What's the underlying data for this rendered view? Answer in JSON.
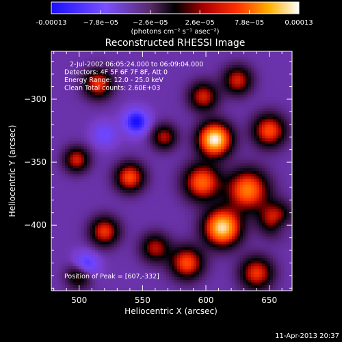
{
  "chart_data": {
    "type": "heatmap",
    "title": "Reconstructed RHESSI Image",
    "xlabel": "Heliocentric X (arcsec)",
    "ylabel": "Heliocentric Y (arcsec)",
    "xlim": [
      478,
      668
    ],
    "ylim": [
      -452,
      -262
    ],
    "x_ticks": [
      500,
      550,
      600,
      650
    ],
    "y_ticks": [
      -300,
      -350,
      -400
    ],
    "colorbar": {
      "min": -0.00013,
      "max": 0.00013,
      "tick_labels": [
        "-0.00013",
        "−7.8e−05",
        "−2.6e−05",
        "2.6e−05",
        "7.8e−05",
        "0.00013"
      ],
      "units": "(photons cm⁻² s⁻¹ asec⁻²)"
    },
    "info_lines": [
      "2-Jul-2002 06:05:24.000 to 06:09:04.000",
      "Detectors: 4F 5F 6F 7F 8F, Att 0",
      "Energy Range: 12.0 - 25.0 keV",
      "Clean    Total counts: 2.60E+03"
    ],
    "peak_label": "Position of Peak = [607,-332]",
    "peak": {
      "x": 607,
      "y": -332
    },
    "field": {
      "baseline": -5.2e-05,
      "sources": [
        {
          "x": 607,
          "y": -332,
          "amp": 0.00018,
          "sigma": 9
        },
        {
          "x": 613,
          "y": -402,
          "amp": 0.00017,
          "sigma": 10
        },
        {
          "x": 633,
          "y": -372,
          "amp": 0.00013,
          "sigma": 11
        },
        {
          "x": 597,
          "y": -366,
          "amp": 0.00012,
          "sigma": 10
        },
        {
          "x": 650,
          "y": -325,
          "amp": 0.00011,
          "sigma": 9
        },
        {
          "x": 655,
          "y": -395,
          "amp": 0.0001,
          "sigma": 9
        },
        {
          "x": 585,
          "y": -430,
          "amp": 0.00011,
          "sigma": 9
        },
        {
          "x": 640,
          "y": -438,
          "amp": 0.0001,
          "sigma": 9
        },
        {
          "x": 598,
          "y": -298,
          "amp": 9e-05,
          "sigma": 8
        },
        {
          "x": 625,
          "y": -285,
          "amp": 9e-05,
          "sigma": 8
        },
        {
          "x": 540,
          "y": -362,
          "amp": 0.00011,
          "sigma": 8
        },
        {
          "x": 515,
          "y": -288,
          "amp": 0.0001,
          "sigma": 8
        },
        {
          "x": 520,
          "y": -405,
          "amp": 0.0001,
          "sigma": 8
        },
        {
          "x": 498,
          "y": -348,
          "amp": 9e-05,
          "sigma": 7
        },
        {
          "x": 560,
          "y": -418,
          "amp": 8e-05,
          "sigma": 8
        },
        {
          "x": 567,
          "y": -330,
          "amp": 8e-05,
          "sigma": 7
        },
        {
          "x": 500,
          "y": -440,
          "amp": 8e-05,
          "sigma": 7
        },
        {
          "x": 545,
          "y": -318,
          "amp": -8e-05,
          "sigma": 7
        },
        {
          "x": 505,
          "y": -432,
          "amp": -7e-05,
          "sigma": 7
        },
        {
          "x": 520,
          "y": -328,
          "amp": -4e-05,
          "sigma": 7
        },
        {
          "x": 660,
          "y": -400,
          "amp": -4e-05,
          "sigma": 6
        }
      ]
    }
  },
  "timestamp": "11-Apr-2013 20:37"
}
